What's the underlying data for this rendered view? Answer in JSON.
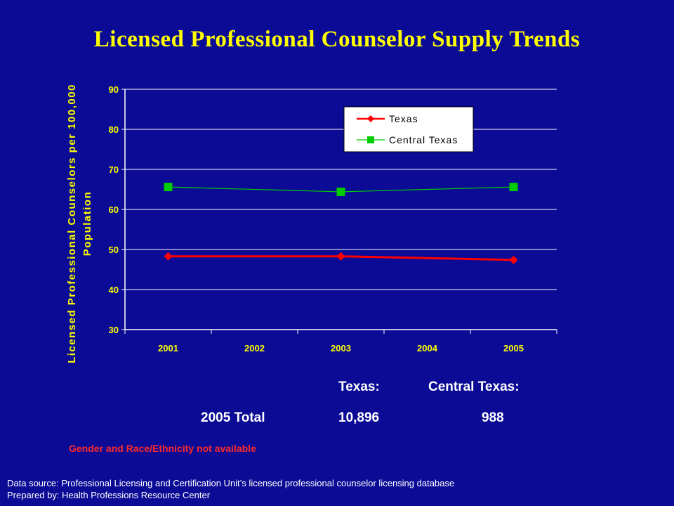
{
  "slide": {
    "title": "Licensed Professional Counselor Supply Trends",
    "summary": {
      "header_texas": "Texas:",
      "header_central": "Central Texas:",
      "row_label": "2005 Total",
      "texas_value": "10,896",
      "central_value": "988"
    },
    "note": "Gender and Race/Ethnicity not available",
    "source_line1": "Data source: Professional Licensing and Certification Unit’s licensed professional counselor licensing database",
    "source_line2": "Prepared by: Health Professions Resource Center"
  },
  "chart_data": {
    "type": "line",
    "title": "",
    "ylabel": "Licensed Professional Counselors per 100,000 Population",
    "xlabel": "",
    "categories": [
      "2001",
      "2002",
      "2003",
      "2004",
      "2005"
    ],
    "ylim": [
      30,
      90
    ],
    "yticks": [
      "30",
      "40",
      "50",
      "60",
      "70",
      "80",
      "90"
    ],
    "grid": true,
    "legend_position": "top-right",
    "series": [
      {
        "name": "Texas",
        "color": "#ff0000",
        "marker": "diamond",
        "x": [
          "2001",
          "2003",
          "2005"
        ],
        "values": [
          48.3,
          48.3,
          47.4
        ]
      },
      {
        "name": "Central Texas",
        "color": "#00cc00",
        "marker": "square",
        "x": [
          "2001",
          "2003",
          "2005"
        ],
        "values": [
          65.6,
          64.4,
          65.6
        ]
      }
    ]
  }
}
